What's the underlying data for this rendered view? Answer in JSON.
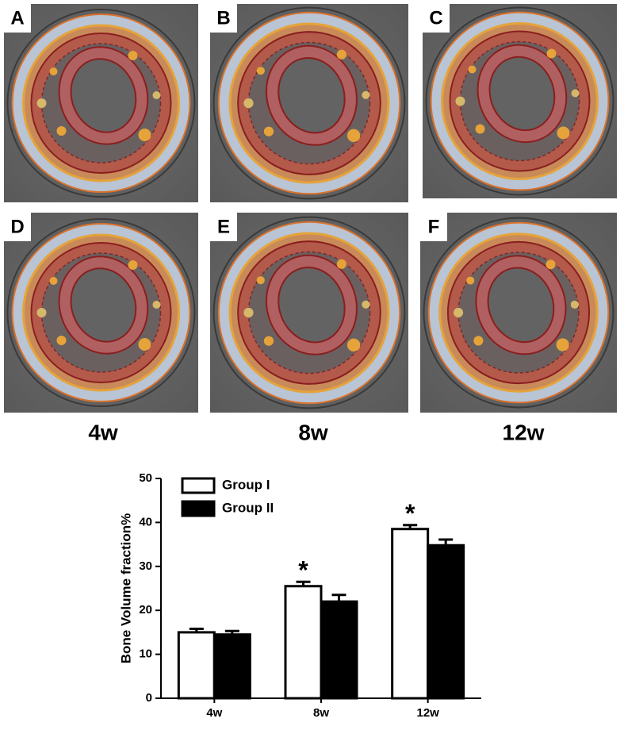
{
  "panels": {
    "labels": [
      "A",
      "B",
      "C",
      "D",
      "E",
      "F"
    ],
    "columns": [
      "4w",
      "8w",
      "12w"
    ]
  },
  "chart_data": {
    "type": "bar",
    "ylabel": "Bone Volume fraction%",
    "categories": [
      "4w",
      "8w",
      "12w"
    ],
    "series": [
      {
        "name": "Group I",
        "color": "#ffffff",
        "values": [
          15,
          25.5,
          38.5
        ],
        "errors": [
          0.8,
          1.0,
          0.9
        ],
        "annotations": [
          null,
          "*",
          "*"
        ]
      },
      {
        "name": "Group II",
        "color": "#000000",
        "values": [
          14.5,
          22,
          34.8
        ],
        "errors": [
          0.8,
          1.5,
          1.3
        ],
        "annotations": [
          null,
          null,
          null
        ]
      }
    ],
    "ylim": [
      0,
      50
    ],
    "yticks": [
      0,
      10,
      20,
      30,
      40,
      50
    ],
    "legend": "upper-left"
  }
}
